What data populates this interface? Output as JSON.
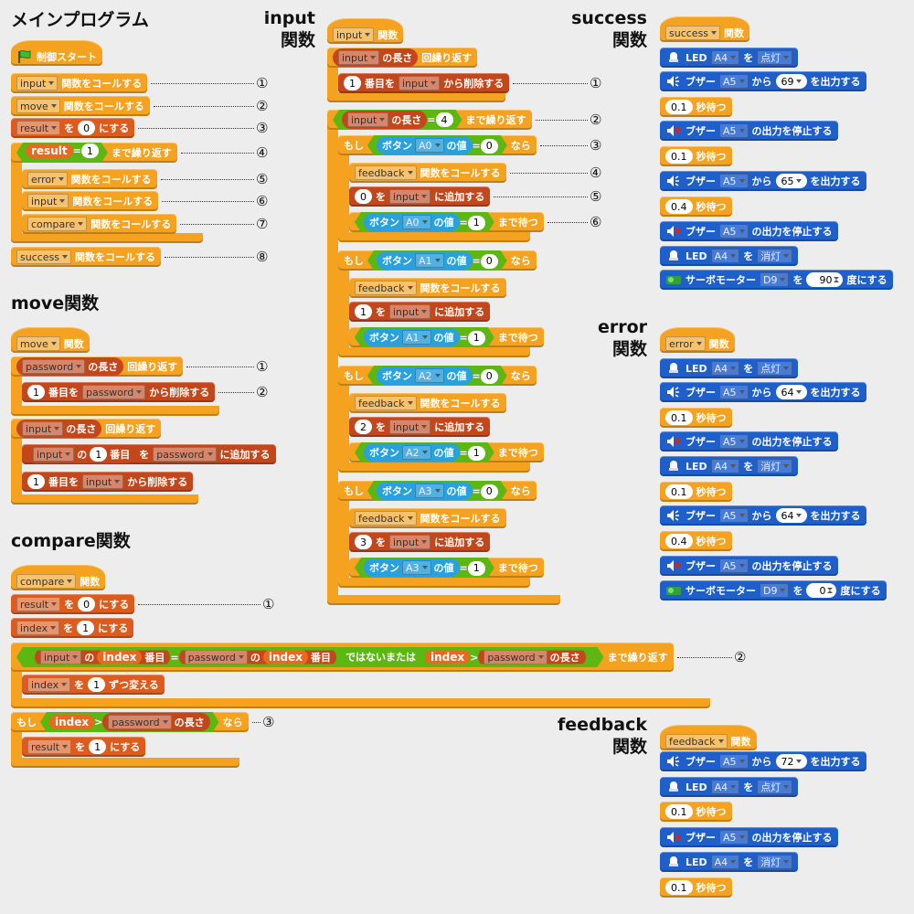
{
  "sections": [
    {
      "title": [
        "メインプログラム"
      ],
      "blocks": [
        {
          "parts": [
            "制御スタート"
          ]
        },
        {
          "parts": [
            "input",
            "関数をコールする"
          ],
          "note": "①"
        },
        {
          "parts": [
            "move",
            "関数をコールする"
          ],
          "note": "②"
        },
        {
          "parts": [
            "result",
            "を",
            "0",
            "にする"
          ],
          "note": "③"
        },
        {
          "parts": [
            "result",
            "=",
            "1",
            "まで繰り返す"
          ],
          "note": "④"
        },
        {
          "parts": [
            "error",
            "関数をコールする"
          ],
          "note": "⑤"
        },
        {
          "parts": [
            "input",
            "関数をコールする"
          ],
          "note": "⑥"
        },
        {
          "parts": [
            "compare",
            "関数をコールする"
          ],
          "note": "⑦"
        },
        {
          "parts": [
            "success",
            "関数をコールする"
          ],
          "note": "⑧"
        }
      ]
    },
    {
      "title": [
        "move関数"
      ],
      "blocks": [
        {
          "parts": [
            "move",
            "関数"
          ]
        },
        {
          "parts": [
            "password",
            "の長さ",
            "回繰り返す"
          ],
          "note": "①"
        },
        {
          "parts": [
            "1",
            "番目を",
            "password",
            "から削除する"
          ],
          "note": "②"
        },
        {
          "parts": [
            "input",
            "の長さ",
            "回繰り返す"
          ]
        },
        {
          "parts": [
            "input",
            "の",
            "1",
            "番目",
            "を",
            "password",
            "に追加する"
          ]
        },
        {
          "parts": [
            "1",
            "番目を",
            "input",
            "から削除する"
          ]
        }
      ]
    },
    {
      "title": [
        "compare関数"
      ],
      "blocks": [
        {
          "parts": [
            "compare",
            "関数"
          ]
        },
        {
          "parts": [
            "result",
            "を",
            "0",
            "にする"
          ],
          "note": "①"
        },
        {
          "parts": [
            "index",
            "を",
            "1",
            "にする"
          ]
        },
        {
          "parts": [
            "input",
            "の",
            "index",
            "番目",
            "=",
            "password",
            "の",
            "index",
            "番目",
            "ではない",
            "または",
            "index",
            ">",
            "password",
            "の長さ",
            "まで繰り返す"
          ],
          "note": "②"
        },
        {
          "parts": [
            "index",
            "を",
            "1",
            "ずつ変える"
          ]
        },
        {
          "parts": [
            "もし",
            "index",
            ">",
            "password",
            "の長さ",
            "なら"
          ],
          "note": "③"
        },
        {
          "parts": [
            "result",
            "を",
            "1",
            "にする"
          ]
        }
      ]
    },
    {
      "title": [
        "input",
        "関数"
      ],
      "blocks": [
        {
          "parts": [
            "input",
            "関数"
          ]
        },
        {
          "parts": [
            "input",
            "の長さ",
            "回繰り返す"
          ]
        },
        {
          "parts": [
            "1",
            "番目を",
            "input",
            "から削除する"
          ],
          "note": "①"
        },
        {
          "parts": [
            "input",
            "の長さ",
            "=",
            "4",
            "まで繰り返す"
          ],
          "note": "②"
        },
        {
          "parts": [
            "もし",
            "ボタン",
            "A0",
            "の値",
            "=",
            "0",
            "なら"
          ],
          "note": "③"
        },
        {
          "parts": [
            "feedback",
            "関数をコールする"
          ],
          "note": "④"
        },
        {
          "parts": [
            "0",
            "を",
            "input",
            "に追加する"
          ],
          "note": "⑤"
        },
        {
          "parts": [
            "ボタン",
            "A0",
            "の値",
            "=",
            "1",
            "まで待つ"
          ],
          "note": "⑥"
        },
        {
          "parts": [
            "もし",
            "ボタン",
            "A1",
            "の値",
            "=",
            "0",
            "なら"
          ]
        },
        {
          "parts": [
            "feedback",
            "関数をコールする"
          ]
        },
        {
          "parts": [
            "1",
            "を",
            "input",
            "に追加する"
          ]
        },
        {
          "parts": [
            "ボタン",
            "A1",
            "の値",
            "=",
            "1",
            "まで待つ"
          ]
        },
        {
          "parts": [
            "もし",
            "ボタン",
            "A2",
            "の値",
            "=",
            "0",
            "なら"
          ]
        },
        {
          "parts": [
            "feedback",
            "関数をコールする"
          ]
        },
        {
          "parts": [
            "2",
            "を",
            "input",
            "に追加する"
          ]
        },
        {
          "parts": [
            "ボタン",
            "A2",
            "の値",
            "=",
            "1",
            "まで待つ"
          ]
        },
        {
          "parts": [
            "もし",
            "ボタン",
            "A3",
            "の値",
            "=",
            "0",
            "なら"
          ]
        },
        {
          "parts": [
            "feedback",
            "関数をコールする"
          ]
        },
        {
          "parts": [
            "3",
            "を",
            "input",
            "に追加する"
          ]
        },
        {
          "parts": [
            "ボタン",
            "A3",
            "の値",
            "=",
            "1",
            "まで待つ"
          ]
        }
      ]
    },
    {
      "title": [
        "success",
        "関数"
      ],
      "blocks": [
        {
          "parts": [
            "success",
            "関数"
          ]
        },
        {
          "parts": [
            "LED",
            "A4",
            "を",
            "点灯"
          ]
        },
        {
          "parts": [
            "ブザー",
            "A5",
            "から",
            "69",
            "を出力する"
          ]
        },
        {
          "parts": [
            "0.1",
            "秒待つ"
          ]
        },
        {
          "parts": [
            "ブザー",
            "A5",
            "の出力を停止する"
          ]
        },
        {
          "parts": [
            "0.1",
            "秒待つ"
          ]
        },
        {
          "parts": [
            "ブザー",
            "A5",
            "から",
            "65",
            "を出力する"
          ]
        },
        {
          "parts": [
            "0.4",
            "秒待つ"
          ]
        },
        {
          "parts": [
            "ブザー",
            "A5",
            "の出力を停止する"
          ]
        },
        {
          "parts": [
            "LED",
            "A4",
            "を",
            "消灯"
          ]
        },
        {
          "parts": [
            "サーボモーター",
            "D9",
            "を",
            "90",
            "度にする"
          ]
        }
      ]
    },
    {
      "title": [
        "error",
        "関数"
      ],
      "blocks": [
        {
          "parts": [
            "error",
            "関数"
          ]
        },
        {
          "parts": [
            "LED",
            "A4",
            "を",
            "点灯"
          ]
        },
        {
          "parts": [
            "ブザー",
            "A5",
            "から",
            "64",
            "を出力する"
          ]
        },
        {
          "parts": [
            "0.1",
            "秒待つ"
          ]
        },
        {
          "parts": [
            "ブザー",
            "A5",
            "の出力を停止する"
          ]
        },
        {
          "parts": [
            "LED",
            "A4",
            "を",
            "消灯"
          ]
        },
        {
          "parts": [
            "0.1",
            "秒待つ"
          ]
        },
        {
          "parts": [
            "ブザー",
            "A5",
            "から",
            "64",
            "を出力する"
          ]
        },
        {
          "parts": [
            "0.4",
            "秒待つ"
          ]
        },
        {
          "parts": [
            "ブザー",
            "A5",
            "の出力を停止する"
          ]
        },
        {
          "parts": [
            "サーボモーター",
            "D9",
            "を",
            "0",
            "度にする"
          ]
        }
      ]
    },
    {
      "title": [
        "feedback",
        "関数"
      ],
      "blocks": [
        {
          "parts": [
            "feedback",
            "関数"
          ]
        },
        {
          "parts": [
            "ブザー",
            "A5",
            "から",
            "72",
            "を出力する"
          ]
        },
        {
          "parts": [
            "LED",
            "A4",
            "を",
            "点灯"
          ]
        },
        {
          "parts": [
            "0.1",
            "秒待つ"
          ]
        },
        {
          "parts": [
            "ブザー",
            "A5",
            "の出力を停止する"
          ]
        },
        {
          "parts": [
            "LED",
            "A4",
            "を",
            "消灯"
          ]
        },
        {
          "parts": [
            "0.1",
            "秒待つ"
          ]
        }
      ]
    }
  ]
}
